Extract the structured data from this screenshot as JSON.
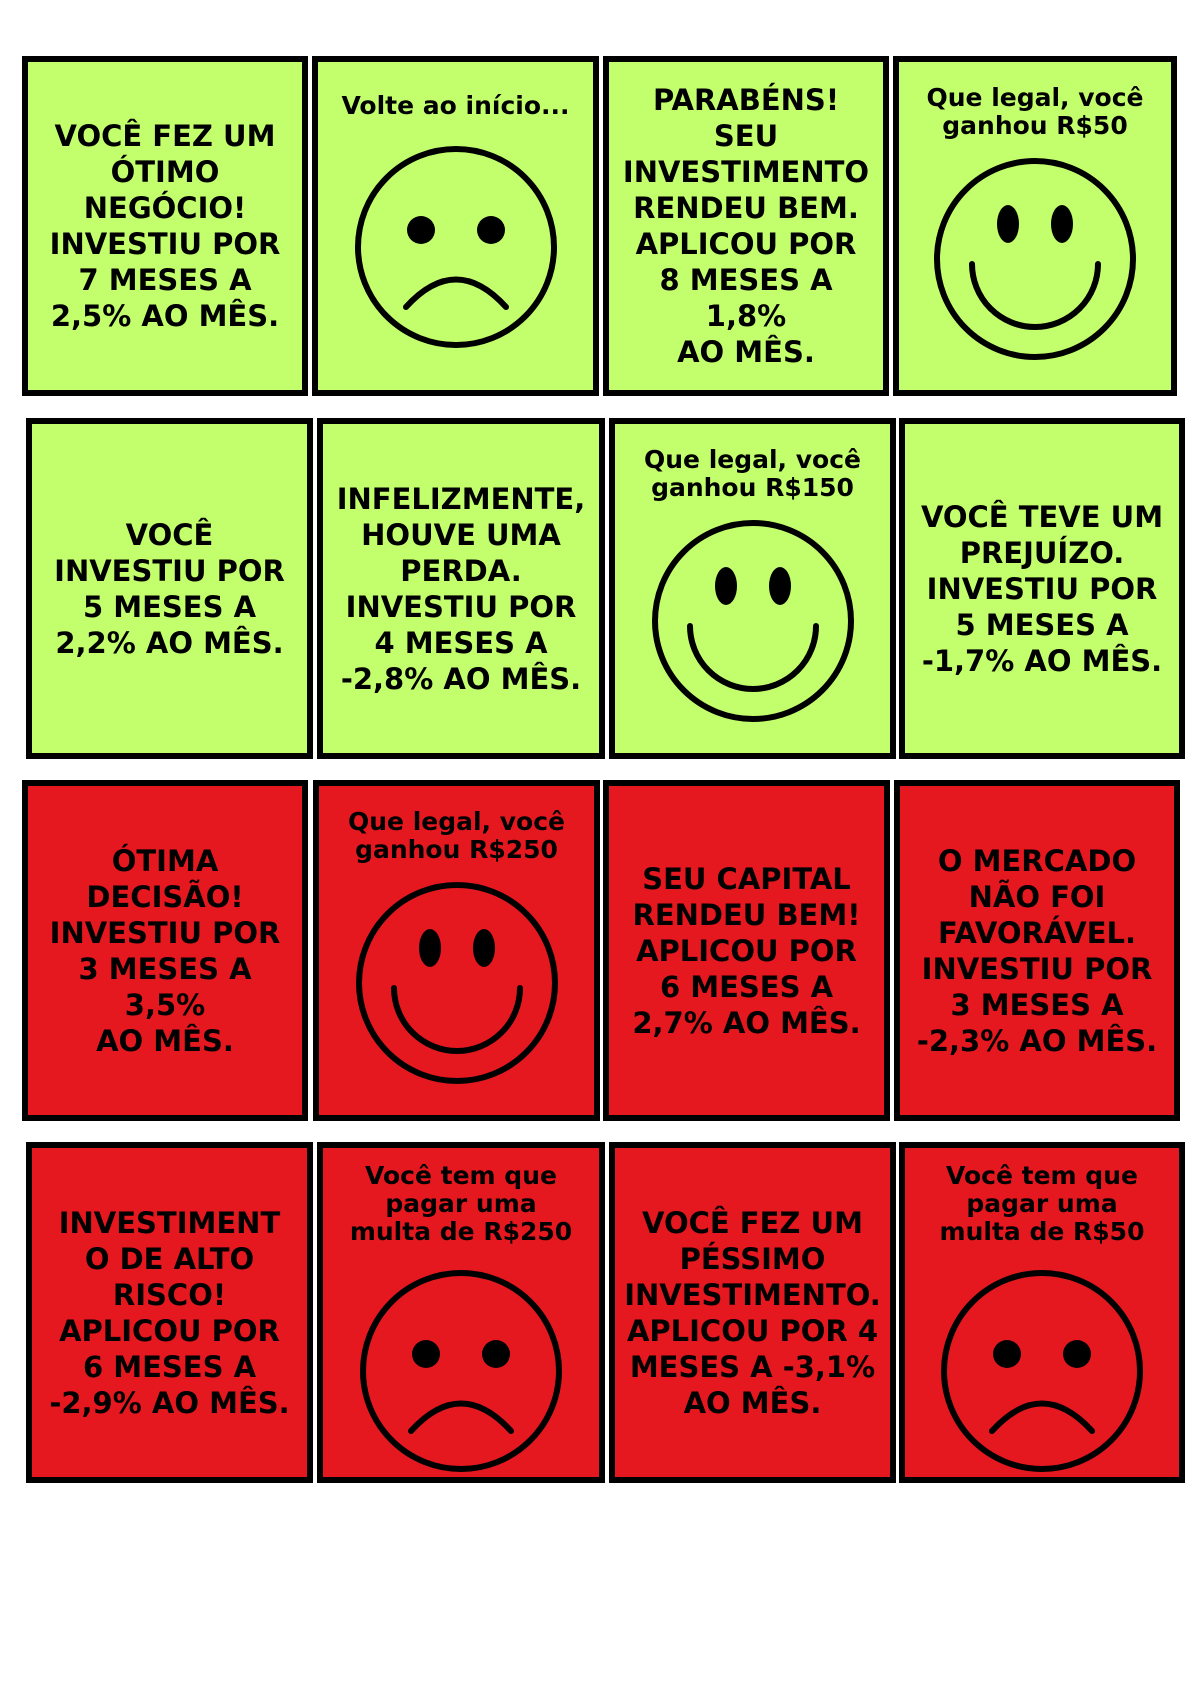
{
  "colors": {
    "green_card": "#c3ff6c",
    "red_card": "#e5181f",
    "border": "#000000",
    "text": "#000000"
  },
  "cards": [
    {
      "color": "green",
      "type": "text",
      "text": "VOCÊ FEZ UM\nÓTIMO\nNEGÓCIO!\nINVESTIU POR\n7 MESES A\n2,5% AO MÊS."
    },
    {
      "color": "green",
      "type": "face",
      "caption": "Volte ao início...",
      "face": "sad-face-icon"
    },
    {
      "color": "green",
      "type": "text",
      "text": "PARABÉNS!\nSEU\nINVESTIMENTO\nRENDEU BEM.\nAPLICOU POR\n8 MESES A 1,8%\nAO MÊS."
    },
    {
      "color": "green",
      "type": "face",
      "caption": "Que legal, você\nganhou R$50",
      "face": "happy-face-icon"
    },
    {
      "color": "green",
      "type": "text",
      "text": "VOCÊ\nINVESTIU POR\n5 MESES A\n2,2% AO MÊS."
    },
    {
      "color": "green",
      "type": "text",
      "text": "INFELIZMENTE,\nHOUVE UMA\nPERDA.\nINVESTIU POR\n4 MESES A\n-2,8% AO MÊS."
    },
    {
      "color": "green",
      "type": "face",
      "caption": "Que legal, você\nganhou R$150",
      "face": "happy-face-icon"
    },
    {
      "color": "green",
      "type": "text",
      "text": "VOCÊ TEVE UM\nPREJUÍZO.\nINVESTIU POR\n5 MESES A\n-1,7% AO MÊS."
    },
    {
      "color": "red",
      "type": "text",
      "text": "ÓTIMA\nDECISÃO!\nINVESTIU POR\n3 MESES A 3,5%\nAO MÊS."
    },
    {
      "color": "red",
      "type": "face",
      "caption": "Que legal, você\nganhou R$250",
      "face": "happy-face-icon"
    },
    {
      "color": "red",
      "type": "text",
      "text": "SEU CAPITAL\nRENDEU BEM!\nAPLICOU POR\n6 MESES A\n2,7% AO MÊS."
    },
    {
      "color": "red",
      "type": "text",
      "text": "O MERCADO\nNÃO FOI\nFAVORÁVEL.\nINVESTIU POR\n3 MESES A\n-2,3% AO MÊS."
    },
    {
      "color": "red",
      "type": "text",
      "text": "INVESTIMENT\nO DE ALTO\nRISCO!\nAPLICOU POR\n6 MESES A\n-2,9% AO MÊS."
    },
    {
      "color": "red",
      "type": "face",
      "caption": "Você tem que\npagar uma\nmulta de R$250",
      "face": "sad-face-icon"
    },
    {
      "color": "red",
      "type": "text",
      "text": "VOCÊ FEZ UM\nPÉSSIMO\nINVESTIMENTO.\nAPLICOU POR 4\nMESES A -3,1%\nAO MÊS."
    },
    {
      "color": "red",
      "type": "face",
      "caption": "Você tem que\npagar uma\nmulta de R$50",
      "face": "sad-face-icon"
    }
  ]
}
